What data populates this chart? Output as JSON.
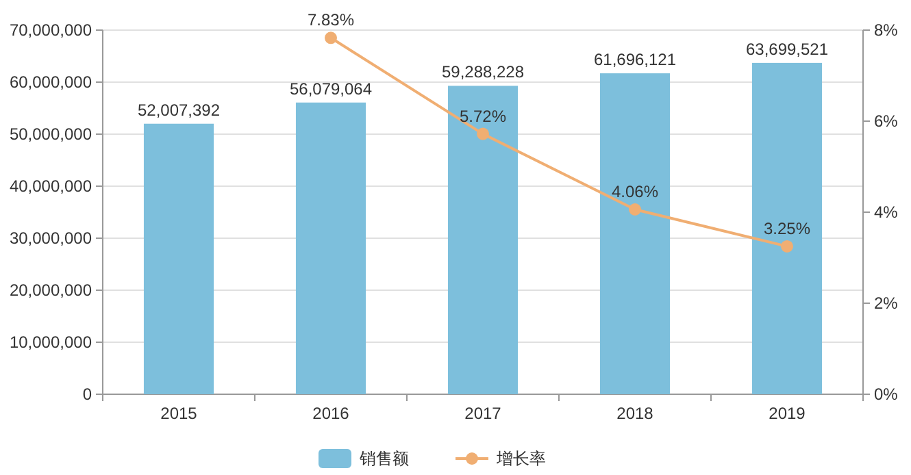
{
  "chart_data": {
    "type": "bar",
    "categories": [
      "2015",
      "2016",
      "2017",
      "2018",
      "2019"
    ],
    "series": [
      {
        "name": "销售额",
        "color": "#7dbfdc",
        "values": [
          52007392,
          56079064,
          59288228,
          61696121,
          63699521
        ],
        "value_labels": [
          "52,007,392",
          "56,079,064",
          "59,288,228",
          "61,696,121",
          "63,699,521"
        ]
      },
      {
        "type": "line",
        "name": "增长率",
        "color": "#f0ae72",
        "axis": "y2",
        "values": [
          null,
          7.83,
          5.72,
          4.06,
          3.25
        ],
        "value_labels": [
          null,
          "7.83%",
          "5.72%",
          "4.06%",
          "3.25%"
        ]
      }
    ],
    "ylim": [
      0,
      70000000
    ],
    "yticks": [
      {
        "value": 0,
        "label": "0"
      },
      {
        "value": 10000000,
        "label": "10,000,000"
      },
      {
        "value": 20000000,
        "label": "20,000,000"
      },
      {
        "value": 30000000,
        "label": "30,000,000"
      },
      {
        "value": 40000000,
        "label": "40,000,000"
      },
      {
        "value": 50000000,
        "label": "50,000,000"
      },
      {
        "value": 60000000,
        "label": "60,000,000"
      },
      {
        "value": 70000000,
        "label": "70,000,000"
      }
    ],
    "y2lim": [
      0,
      8
    ],
    "y2ticks": [
      {
        "value": 0,
        "label": "0%"
      },
      {
        "value": 2,
        "label": "2%"
      },
      {
        "value": 4,
        "label": "4%"
      },
      {
        "value": 6,
        "label": "6%"
      },
      {
        "value": 8,
        "label": "8%"
      }
    ],
    "grid": "y",
    "legend": "bottom",
    "marker": "circle"
  }
}
